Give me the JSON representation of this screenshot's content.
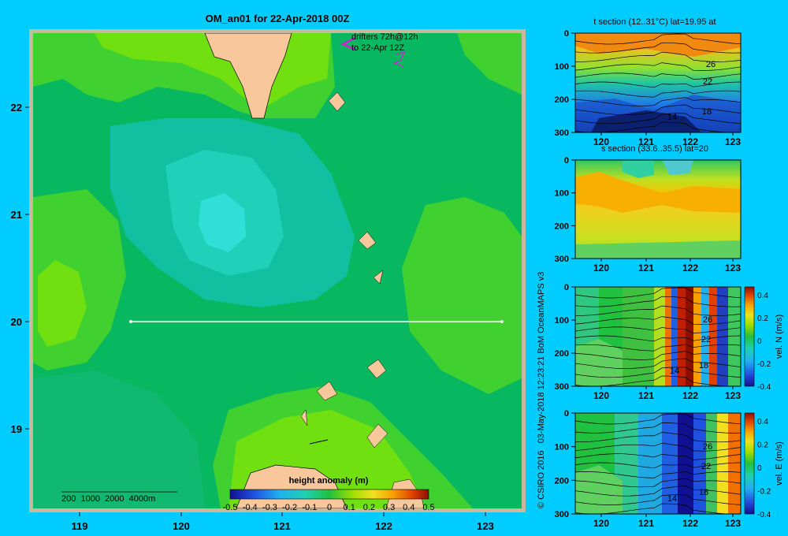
{
  "map": {
    "title": "OM_an01 for 22-Apr-2018 00Z",
    "drifters_line1": "drifters 72h@12h",
    "drifters_line2": "to 22-Apr 12Z",
    "lon_ticks": [
      "119",
      "120",
      "121",
      "122",
      "123"
    ],
    "lat_ticks": [
      "22",
      "21",
      "20",
      "19"
    ],
    "depth_legend": "200  1000  2000  4000m",
    "colorbar_title": "height anomaly  (m)",
    "colorbar_ticks": [
      "-0.5",
      "-0.4",
      "-0.3",
      "-0.2",
      "-0.1",
      "0",
      "0.1",
      "0.2",
      "0.3",
      "0.4",
      "0.5"
    ],
    "colors": {
      "land": "#f8c89c",
      "sea_base": "#08b860",
      "sea_light": "#40d030",
      "sea_lighter": "#70e010",
      "sea_cyan": "#10c8a0",
      "sea_cyan2": "#20d8c0",
      "frame": "#c8b8a0",
      "drifter": "#d020d0"
    }
  },
  "panels": [
    {
      "title": "t section (12..31°C) lat=19.95 at",
      "contour_labels": [
        "26",
        "22",
        "18",
        "14"
      ],
      "colorbar_label": "",
      "colorbar_ticks": []
    },
    {
      "title": "s section (33.6..35.5) lat=20",
      "contour_labels": [],
      "colorbar_label": "",
      "colorbar_ticks": []
    },
    {
      "title": "",
      "contour_labels": [
        "26",
        "22",
        "18",
        "14"
      ],
      "colorbar_label": "vel. N (m/s)",
      "colorbar_ticks": [
        "0.4",
        "0.2",
        "0",
        "-0.2",
        "-0.4"
      ]
    },
    {
      "title": "",
      "contour_labels": [
        "26",
        "22",
        "18",
        "14"
      ],
      "colorbar_label": "vel. E (m/s)",
      "colorbar_ticks": [
        "0.4",
        "0.2",
        "0",
        "-0.2",
        "-0.4"
      ]
    }
  ],
  "section_axes": {
    "depth_ticks": [
      "0",
      "100",
      "200",
      "300"
    ],
    "lon_ticks": [
      "120",
      "121",
      "122",
      "123"
    ]
  },
  "credit": "© CSIRO 2016   03-May-2018 12:23:21 BoM OceanMAPS v3"
}
